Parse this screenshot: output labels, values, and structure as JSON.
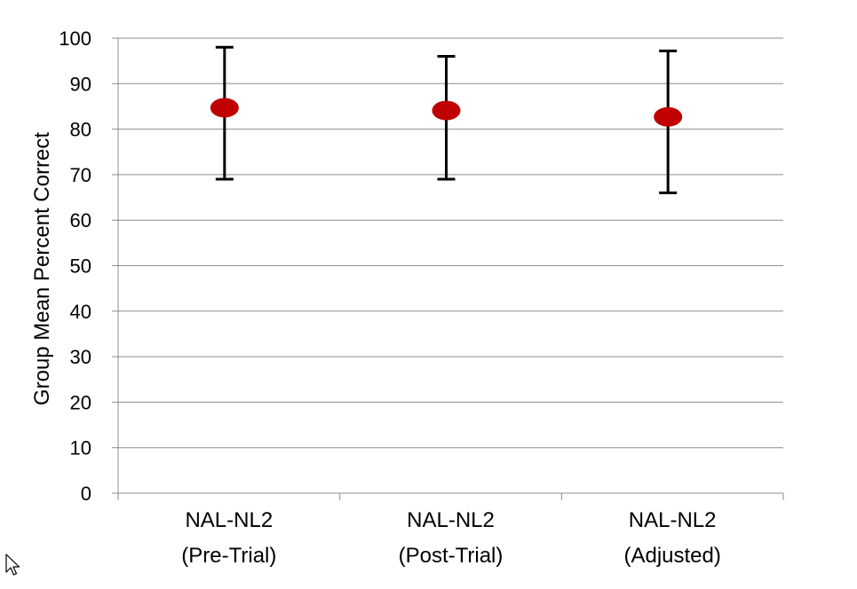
{
  "chart_data": {
    "type": "scatter",
    "title": "",
    "xlabel": "",
    "ylabel": "Group Mean Percent Correct",
    "ylim": [
      0,
      100
    ],
    "yticks": [
      0,
      10,
      20,
      30,
      40,
      50,
      60,
      70,
      80,
      90,
      100
    ],
    "grid": true,
    "categories": [
      {
        "line1": "NAL-NL2",
        "line2": "(Pre-Trial)"
      },
      {
        "line1": "NAL-NL2",
        "line2": "(Post-Trial)"
      },
      {
        "line1": "NAL-NL2",
        "line2": "(Adjusted)"
      }
    ],
    "series": [
      {
        "values": [
          84.7,
          84.1,
          82.7
        ],
        "error_low": [
          69,
          69,
          66
        ],
        "error_high": [
          98,
          96,
          97.2
        ],
        "color": "#c00000"
      }
    ]
  },
  "cursor": "arrow-pointer-icon"
}
